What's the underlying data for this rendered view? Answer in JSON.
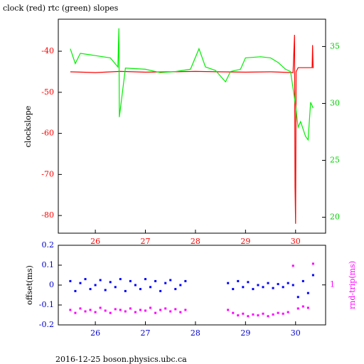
{
  "chart_data": [
    {
      "type": "line",
      "title": "clock (red) rtc (green) slopes",
      "ylabel": "clockslope",
      "xlim": [
        25.26,
        30.6
      ],
      "xticks": [
        26,
        27,
        28,
        29,
        30
      ],
      "ylim": [
        -84.3,
        -32.2
      ],
      "yticks": [
        -40,
        -50,
        -60,
        -70,
        -80
      ],
      "y2lim": [
        18.6,
        37.4
      ],
      "y2ticks": [
        35,
        30,
        25,
        20
      ],
      "series": [
        {
          "name": "clock",
          "color": "#ff0000",
          "axis": "y",
          "x": [
            25.5,
            26.0,
            26.5,
            27.0,
            27.5,
            28.0,
            28.5,
            29.0,
            29.5,
            29.95,
            29.98,
            29.99,
            30.0,
            30.01,
            30.05,
            30.2,
            30.33,
            30.34,
            30.35,
            30.36
          ],
          "values": [
            -45,
            -45.2,
            -44.9,
            -45.1,
            -45,
            -44.9,
            -45,
            -45.1,
            -45,
            -45.2,
            -36,
            -73,
            -82,
            -45,
            -44,
            -44,
            -44,
            -38.5,
            -44,
            -44
          ]
        },
        {
          "name": "rtc",
          "color": "#00ee00",
          "axis": "y2",
          "x": [
            25.5,
            25.6,
            25.7,
            26.0,
            26.3,
            26.45,
            26.47,
            26.48,
            26.6,
            27.0,
            27.3,
            27.6,
            27.9,
            28.07,
            28.2,
            28.4,
            28.6,
            28.7,
            28.9,
            29.0,
            29.3,
            29.5,
            29.65,
            29.8,
            29.9,
            30.0,
            30.05,
            30.1,
            30.2,
            30.25,
            30.3,
            30.35
          ],
          "values": [
            34.8,
            33.5,
            34.4,
            34.2,
            34.0,
            33.2,
            36.6,
            28.8,
            33.1,
            33.0,
            32.7,
            32.8,
            33.0,
            34.8,
            33.2,
            32.9,
            31.9,
            32.8,
            33.0,
            34.0,
            34.1,
            34.0,
            33.6,
            33.0,
            32.8,
            29.8,
            27.9,
            28.4,
            27.1,
            26.8,
            30.1,
            29.6
          ]
        }
      ]
    },
    {
      "type": "scatter",
      "ylabel": "offset(ms)",
      "y2label": "rnd-trip(ms)",
      "footer": "2016-12-25 boson.physics.ubc.ca",
      "xlim": [
        25.26,
        30.6
      ],
      "xticks": [
        26,
        27,
        28,
        29,
        30
      ],
      "ylim": [
        -0.2,
        0.2
      ],
      "yticks": [
        0.2,
        0.1,
        0,
        -0.1,
        -0.2
      ],
      "y2lim": [
        0.33,
        3
      ],
      "y2log": true,
      "y2ticks": [
        1
      ],
      "series": [
        {
          "name": "offset",
          "color": "#0000ff",
          "axis": "y",
          "x": [
            25.5,
            25.6,
            25.7,
            25.8,
            25.9,
            26.0,
            26.1,
            26.2,
            26.3,
            26.4,
            26.5,
            26.6,
            26.7,
            26.8,
            26.9,
            27.0,
            27.1,
            27.2,
            27.3,
            27.4,
            27.5,
            27.6,
            27.7,
            27.8,
            28.65,
            28.75,
            28.85,
            28.95,
            29.05,
            29.15,
            29.25,
            29.35,
            29.45,
            29.55,
            29.65,
            29.75,
            29.85,
            29.95,
            30.05,
            30.15,
            30.25,
            30.35
          ],
          "values": [
            0.02,
            -0.03,
            0.01,
            0.03,
            -0.02,
            0.0,
            0.025,
            -0.025,
            0.015,
            -0.01,
            0.03,
            -0.03,
            0.02,
            0.0,
            -0.02,
            0.03,
            -0.01,
            0.02,
            -0.03,
            0.01,
            0.025,
            -0.02,
            0.0,
            0.02,
            0.01,
            -0.02,
            0.02,
            -0.01,
            0.015,
            -0.02,
            0.0,
            -0.01,
            0.01,
            -0.015,
            0.005,
            -0.01,
            0.01,
            0.0,
            -0.06,
            0.02,
            -0.04,
            0.05
          ]
        },
        {
          "name": "rnd-trip",
          "color": "#ff00ff",
          "axis": "y2",
          "x": [
            25.5,
            25.6,
            25.7,
            25.8,
            25.9,
            26.0,
            26.1,
            26.2,
            26.3,
            26.4,
            26.5,
            26.6,
            26.7,
            26.8,
            26.9,
            27.0,
            27.1,
            27.2,
            27.3,
            27.4,
            27.5,
            27.6,
            27.7,
            27.8,
            28.65,
            28.75,
            28.85,
            28.95,
            29.05,
            29.15,
            29.25,
            29.35,
            29.45,
            29.55,
            29.65,
            29.75,
            29.85,
            29.95,
            30.05,
            30.15,
            30.25,
            30.35
          ],
          "values": [
            0.5,
            0.46,
            0.52,
            0.48,
            0.5,
            0.47,
            0.53,
            0.49,
            0.46,
            0.51,
            0.5,
            0.48,
            0.52,
            0.47,
            0.5,
            0.49,
            0.53,
            0.46,
            0.5,
            0.52,
            0.48,
            0.51,
            0.47,
            0.5,
            0.5,
            0.46,
            0.43,
            0.45,
            0.42,
            0.44,
            0.43,
            0.45,
            0.42,
            0.44,
            0.46,
            0.45,
            0.47,
            1.7,
            0.52,
            0.55,
            0.53,
            1.8
          ]
        }
      ]
    }
  ]
}
